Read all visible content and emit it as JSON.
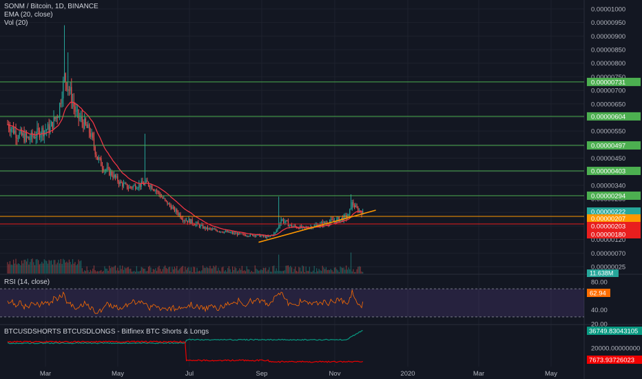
{
  "legend": {
    "main": "SONM / Bitcoin, 1D, BINANCE",
    "ema": "EMA (20, close)",
    "vol": "Vol (20)",
    "rsi": "RSI (14, close)",
    "shorts": "BTCUSDSHORTS BTCUSDLONGS - Bitfinex BTC Shorts & Longs"
  },
  "colors": {
    "background": "#131722",
    "grid": "#1e222d",
    "candle_up": "#26a69a",
    "candle_down": "#ef5350",
    "ema": "#f23645",
    "level_line": "#4caf50",
    "trend_line": "#ff9800",
    "red_line": "#e91e1e",
    "rsi_line": "#ff6d00",
    "rsi_band": "#7e57c2",
    "longs_line": "#089981",
    "shorts_line": "#f00000"
  },
  "chart_data": [
    {
      "type": "candlestick",
      "title": "SONM / Bitcoin, 1D, BINANCE",
      "y_ticks": [
        "0.00001000",
        "0.00000950",
        "0.00000900",
        "0.00000850",
        "0.00000800",
        "0.00000750",
        "0.00000700",
        "0.00000650",
        "0.00000600",
        "0.00000550",
        "0.00000500",
        "0.00000450",
        "0.00000400",
        "0.00000340",
        "0.00000280",
        "0.00000220",
        "0.00000180",
        "0.00000120",
        "0.00000070",
        "0.00000025"
      ],
      "x_ticks": [
        "Mar",
        "May",
        "Jul",
        "Sep",
        "Nov",
        "2020",
        "Mar",
        "May"
      ],
      "horizontal_levels": [
        {
          "value": 7.31e-06,
          "label": "0.00000731",
          "color": "#4caf50"
        },
        {
          "value": 6.04e-06,
          "label": "0.00000604",
          "color": "#4caf50"
        },
        {
          "value": 4.97e-06,
          "label": "0.00000497",
          "color": "#4caf50"
        },
        {
          "value": 4.03e-06,
          "label": "0.00000403",
          "color": "#4caf50"
        },
        {
          "value": 2.94e-06,
          "label": "0.00000294",
          "color": "#4caf50"
        }
      ],
      "price_labels": [
        {
          "label": "0.00000222",
          "color": "#26a69a"
        },
        {
          "label": "0.00000207",
          "color": "#ff9800"
        },
        {
          "label": "0.00000203",
          "color": "#e91e1e"
        },
        {
          "label": "0.00000180",
          "color": "#e91e1e"
        }
      ],
      "volume_label": "11.638M",
      "approx_close_path": [
        [
          "2019-01-28",
          5.75e-06
        ],
        [
          "2019-02-05",
          5.4e-06
        ],
        [
          "2019-02-15",
          5.2e-06
        ],
        [
          "2019-02-25",
          5.5e-06
        ],
        [
          "2019-03-05",
          5.6e-06
        ],
        [
          "2019-03-12",
          6.2e-06
        ],
        [
          "2019-03-17",
          7.5e-06
        ],
        [
          "2019-03-22",
          6.9e-06
        ],
        [
          "2019-03-27",
          6.1e-06
        ],
        [
          "2019-04-02",
          5.8e-06
        ],
        [
          "2019-04-08",
          5.4e-06
        ],
        [
          "2019-04-14",
          4.5e-06
        ],
        [
          "2019-04-20",
          4.1e-06
        ],
        [
          "2019-04-26",
          3.9e-06
        ],
        [
          "2019-05-03",
          3.5e-06
        ],
        [
          "2019-05-10",
          3.3e-06
        ],
        [
          "2019-05-18",
          3.4e-06
        ],
        [
          "2019-05-26",
          3.5e-06
        ],
        [
          "2019-06-02",
          3.2e-06
        ],
        [
          "2019-06-10",
          2.7e-06
        ],
        [
          "2019-06-18",
          2.3e-06
        ],
        [
          "2019-06-26",
          2e-06
        ],
        [
          "2019-07-04",
          1.9e-06
        ],
        [
          "2019-07-14",
          1.7e-06
        ],
        [
          "2019-07-24",
          1.6e-06
        ],
        [
          "2019-08-04",
          1.5e-06
        ],
        [
          "2019-08-15",
          1.4e-06
        ],
        [
          "2019-08-26",
          1.4e-06
        ],
        [
          "2019-09-05",
          1.3e-06
        ],
        [
          "2019-09-11",
          1.5e-06
        ],
        [
          "2019-09-16",
          2e-06
        ],
        [
          "2019-09-24",
          1.8e-06
        ],
        [
          "2019-10-05",
          1.7e-06
        ],
        [
          "2019-10-15",
          1.8e-06
        ],
        [
          "2019-10-25",
          1.9e-06
        ],
        [
          "2019-11-05",
          2e-06
        ],
        [
          "2019-11-12",
          2.1e-06
        ],
        [
          "2019-11-15",
          2.6e-06
        ],
        [
          "2019-11-20",
          2.3e-06
        ],
        [
          "2019-11-24",
          2.2e-06
        ]
      ]
    },
    {
      "type": "line",
      "title": "RSI (14, close)",
      "y_ticks": [
        "80.00",
        "40.00",
        "20.00"
      ],
      "current_label": "62.94",
      "band": [
        30,
        70
      ]
    },
    {
      "type": "line",
      "title": "BTCUSDSHORTS BTCUSDLONGS - Bitfinex BTC Shorts & Longs",
      "y_ticks": [
        "20000.00000000"
      ],
      "series": [
        {
          "name": "BTCUSDLONGS",
          "current_label": "36749.83043105"
        },
        {
          "name": "BTCUSDSHORTS",
          "current_label": "7673.93726023"
        }
      ]
    }
  ]
}
